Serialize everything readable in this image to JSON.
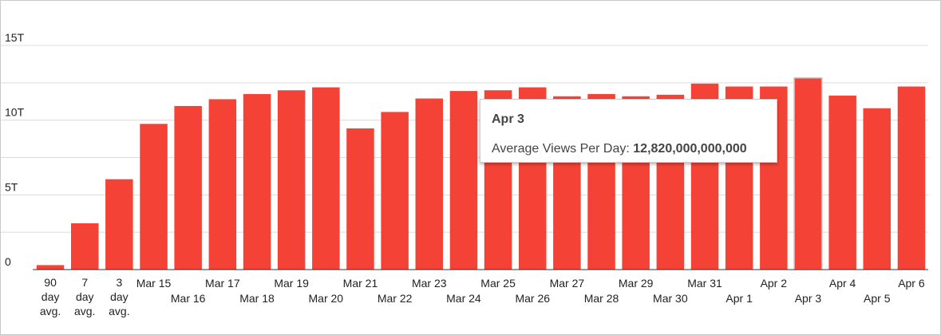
{
  "chart_data": {
    "type": "bar",
    "categories": [
      [
        "90",
        "day",
        "avg."
      ],
      [
        "7",
        "day",
        "avg."
      ],
      [
        "3",
        "day",
        "avg."
      ],
      [
        "Mar 15"
      ],
      [
        "Mar 16"
      ],
      [
        "Mar 17"
      ],
      [
        "Mar 18"
      ],
      [
        "Mar 19"
      ],
      [
        "Mar 20"
      ],
      [
        "Mar 21"
      ],
      [
        "Mar 22"
      ],
      [
        "Mar 23"
      ],
      [
        "Mar 24"
      ],
      [
        "Mar 25"
      ],
      [
        "Mar 26"
      ],
      [
        "Mar 27"
      ],
      [
        "Mar 28"
      ],
      [
        "Mar 29"
      ],
      [
        "Mar 30"
      ],
      [
        "Mar 31"
      ],
      [
        "Apr 1"
      ],
      [
        "Apr 2"
      ],
      [
        "Apr 3"
      ],
      [
        "Apr 4"
      ],
      [
        "Apr 5"
      ],
      [
        "Apr 6"
      ]
    ],
    "series": [
      {
        "name": "Average Views Per Day",
        "color": "#f44336",
        "values": [
          0.3,
          3.1,
          6.05,
          9.75,
          10.95,
          11.4,
          11.75,
          12.0,
          12.2,
          9.45,
          10.55,
          11.45,
          11.95,
          12.0,
          12.2,
          11.6,
          11.75,
          11.6,
          11.7,
          12.45,
          12.25,
          12.25,
          12.82,
          11.65,
          10.8,
          12.25
        ]
      }
    ],
    "y_ticks": [
      {
        "value": 0,
        "label": "0"
      },
      {
        "value": 5,
        "label": "5T"
      },
      {
        "value": 10,
        "label": "10T"
      },
      {
        "value": 15,
        "label": "15T"
      }
    ],
    "y_minor_ticks": [
      2.5,
      7.5,
      12.5
    ],
    "ylim": [
      0,
      15
    ],
    "highlighted_index": 22,
    "grid": true
  },
  "tooltip": {
    "title": "Apr 3",
    "label": "Average Views Per Day:",
    "value": "12,820,000,000,000"
  }
}
